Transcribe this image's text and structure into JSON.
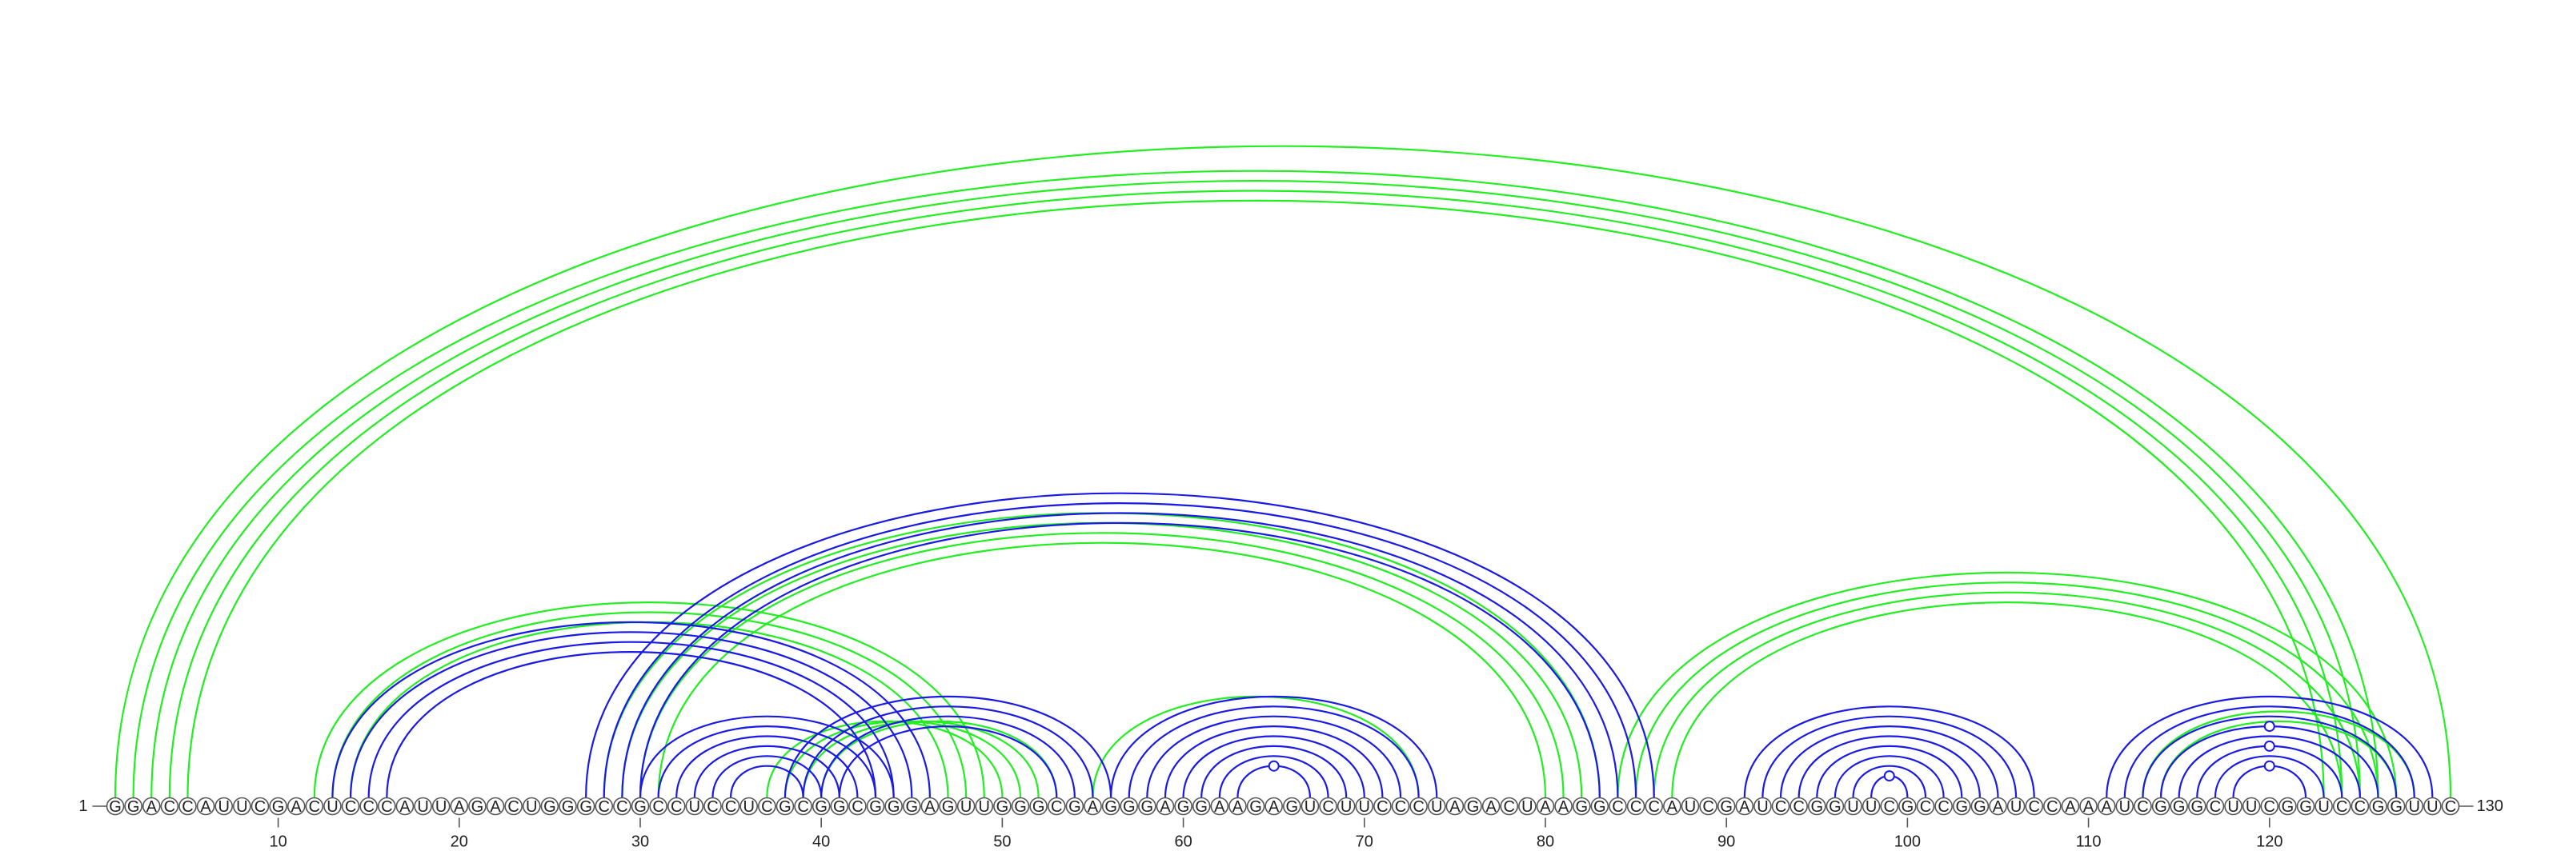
{
  "chart_data": {
    "type": "arc",
    "sequence": "GGACCAUUCGACUCCCAUUAGACUGGGCCGCCUCCUCGCGGCGGGAGUUGGGCGAGGGAGGAAGAGUCUUCCCUAGACUAAGGCCCAUCGAUCCGGUUCGCCGGAUCCAAAUCGGGCUUCGGUCCGGUUC",
    "start_label": "1",
    "end_label": "130",
    "ticks": [
      10,
      20,
      30,
      40,
      50,
      60,
      70,
      80,
      90,
      100,
      110,
      120
    ],
    "colors": {
      "blue": "#1a1ae6",
      "green": "#22ee22"
    },
    "blue_pairs": [
      [
        13,
        46
      ],
      [
        14,
        45
      ],
      [
        15,
        44
      ],
      [
        16,
        43
      ],
      [
        27,
        86
      ],
      [
        28,
        85
      ],
      [
        29,
        84
      ],
      [
        30,
        83
      ],
      [
        30,
        44
      ],
      [
        31,
        43
      ],
      [
        32,
        42
      ],
      [
        33,
        41
      ],
      [
        34,
        40
      ],
      [
        35,
        39
      ],
      [
        38,
        56
      ],
      [
        39,
        55
      ],
      [
        40,
        54
      ],
      [
        41,
        53
      ],
      [
        56,
        74
      ],
      [
        57,
        73
      ],
      [
        58,
        72
      ],
      [
        59,
        71
      ],
      [
        60,
        70
      ],
      [
        61,
        69
      ],
      [
        62,
        68
      ],
      [
        63,
        67
      ],
      [
        91,
        107
      ],
      [
        92,
        106
      ],
      [
        93,
        105
      ],
      [
        94,
        104
      ],
      [
        95,
        103
      ],
      [
        96,
        102
      ],
      [
        97,
        101
      ],
      [
        98,
        100
      ],
      [
        111,
        129
      ],
      [
        112,
        128
      ],
      [
        113,
        127
      ],
      [
        114,
        126
      ],
      [
        115,
        125
      ],
      [
        116,
        124
      ],
      [
        117,
        123
      ],
      [
        118,
        122
      ]
    ],
    "green_pairs": [
      [
        1,
        130
      ],
      [
        2,
        126
      ],
      [
        3,
        125
      ],
      [
        4,
        124
      ],
      [
        5,
        123
      ],
      [
        12,
        49
      ],
      [
        13,
        48
      ],
      [
        14,
        47
      ],
      [
        28,
        83
      ],
      [
        29,
        82
      ],
      [
        30,
        81
      ],
      [
        31,
        80
      ],
      [
        37,
        50
      ],
      [
        38,
        51
      ],
      [
        39,
        52
      ],
      [
        40,
        53
      ],
      [
        55,
        73
      ],
      [
        84,
        127
      ],
      [
        85,
        126
      ],
      [
        86,
        125
      ],
      [
        87,
        124
      ],
      [
        113,
        128
      ],
      [
        114,
        127
      ]
    ],
    "gu_markers": [
      {
        "i": 63,
        "j": 67,
        "color": "blue"
      },
      {
        "i": 98,
        "j": 100,
        "color": "blue"
      },
      {
        "i": 114,
        "j": 126,
        "color": "blue"
      },
      {
        "i": 116,
        "j": 124,
        "color": "blue"
      },
      {
        "i": 118,
        "j": 122,
        "color": "blue"
      }
    ]
  }
}
